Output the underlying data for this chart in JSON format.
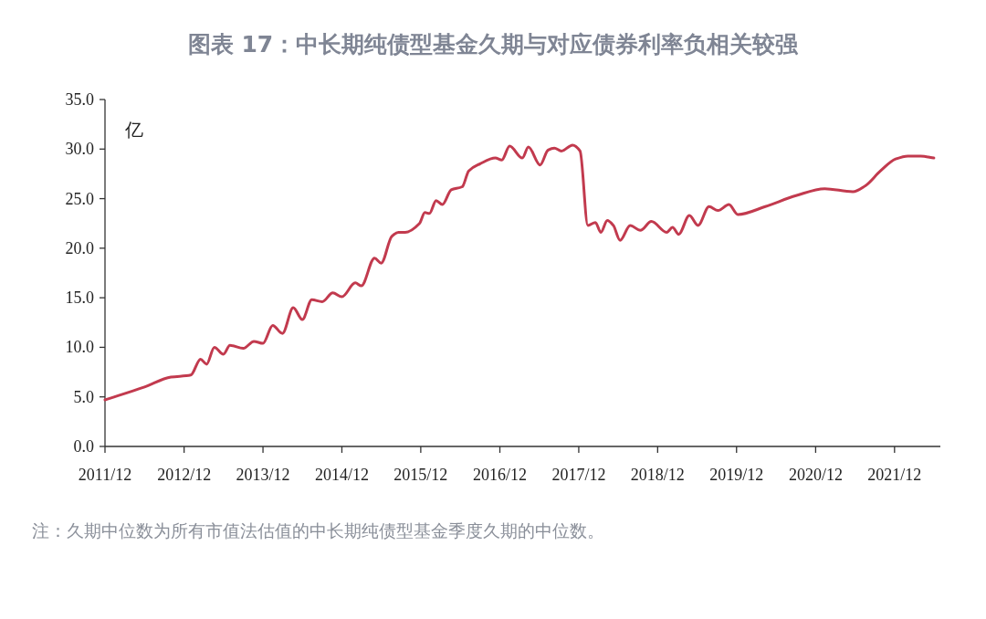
{
  "chart_data": {
    "type": "line",
    "title": "图表 17：中长期纯债型基金久期与对应债券利率负相关较强",
    "ylabel": "亿",
    "annotations": [
      "注：久期中位数为所有市值法估值的中长期纯债型基金季度久期的中位数。"
    ],
    "x": [
      "2011-12",
      "2012-06",
      "2012-10",
      "2013-01",
      "2013-02-15",
      "2013-03-15",
      "2013-04-20",
      "2013-06",
      "2013-07",
      "2013-09",
      "2013-10-20",
      "2013-12",
      "2014-01-15",
      "2014-03",
      "2014-04-20",
      "2014-06",
      "2014-07-15",
      "2014-09",
      "2014-10-20",
      "2014-12",
      "2015-02",
      "2015-03",
      "2015-05",
      "2015-06",
      "2015-07-20",
      "2015-08-20",
      "2015-09-20",
      "2015-11-25",
      "2015-12-20",
      "2016-01-10",
      "2016-02-10",
      "2016-03-10",
      "2016-04-20",
      "2016-06-10",
      "2016-07-10",
      "2016-08-30",
      "2016-11-10",
      "2016-12-10",
      "2017-01-15",
      "2017-03-15",
      "2017-04-12",
      "2017-06-05",
      "2017-07-12",
      "2017-08-10",
      "2017-09-12",
      "2017-11-02",
      "2017-12-07",
      "2018-01-12",
      "2018-02-16",
      "2018-03-13",
      "2018-04-12",
      "2018-05-10",
      "2018-06-10",
      "2018-07-27",
      "2018-09-12",
      "2018-11-02",
      "2019-01-12",
      "2019-02-08",
      "2019-03-08",
      "2019-04-27",
      "2019-06-06",
      "2019-07-27",
      "2019-09-06",
      "2019-10-27",
      "2019-12-07",
      "2020-04-12",
      "2020-09-01",
      "2021-01-12",
      "2021-05-22",
      "2021-07-19",
      "2021-09-27",
      "2021-12-06",
      "2022-02",
      "2022-04",
      "2022-06"
    ],
    "series": [
      {
        "color": "#c23a4e",
        "values": [
          4.7,
          6.0,
          7.0,
          7.2,
          8.8,
          8.3,
          10.0,
          9.3,
          10.2,
          9.9,
          10.6,
          10.4,
          12.2,
          11.4,
          14.0,
          12.8,
          14.8,
          14.6,
          15.5,
          15.1,
          16.5,
          16.2,
          19.0,
          18.5,
          21.2,
          21.6,
          21.6,
          22.5,
          23.6,
          23.5,
          24.8,
          24.4,
          25.9,
          26.2,
          27.8,
          28.5,
          29.1,
          28.9,
          30.3,
          29.1,
          30.2,
          28.4,
          29.9,
          30.1,
          29.8,
          30.4,
          29.8,
          22.3,
          22.6,
          21.6,
          22.8,
          22.3,
          20.8,
          22.3,
          21.8,
          22.7,
          21.6,
          22.1,
          21.4,
          23.3,
          22.3,
          24.2,
          23.8,
          24.4,
          23.4,
          24.2,
          25.3,
          26.0,
          25.7,
          26.3,
          27.8,
          29.0,
          29.3,
          29.3,
          29.1
        ]
      }
    ],
    "xlim": [
      "2011-12",
      "2022-07"
    ],
    "xticks": [
      {
        "value": "2011-12",
        "label": "2011/12"
      },
      {
        "value": "2012-12",
        "label": "2012/12"
      },
      {
        "value": "2013-12",
        "label": "2013/12"
      },
      {
        "value": "2014-12",
        "label": "2014/12"
      },
      {
        "value": "2015-12",
        "label": "2015/12"
      },
      {
        "value": "2016-12",
        "label": "2016/12"
      },
      {
        "value": "2017-12",
        "label": "2017/12"
      },
      {
        "value": "2018-12",
        "label": "2018/12"
      },
      {
        "value": "2019-12",
        "label": "2019/12"
      },
      {
        "value": "2020-12",
        "label": "2020/12"
      },
      {
        "value": "2021-12",
        "label": "2021/12"
      }
    ],
    "ylim": [
      0,
      35
    ],
    "yticks": [
      {
        "value": 0,
        "label": "0.0"
      },
      {
        "value": 5,
        "label": "5.0"
      },
      {
        "value": 10,
        "label": "10.0"
      },
      {
        "value": 15,
        "label": "15.0"
      },
      {
        "value": 20,
        "label": "20.0"
      },
      {
        "value": 25,
        "label": "25.0"
      },
      {
        "value": 30,
        "label": "30.0"
      },
      {
        "value": 35,
        "label": "35.0"
      }
    ],
    "line_style": "solid"
  }
}
